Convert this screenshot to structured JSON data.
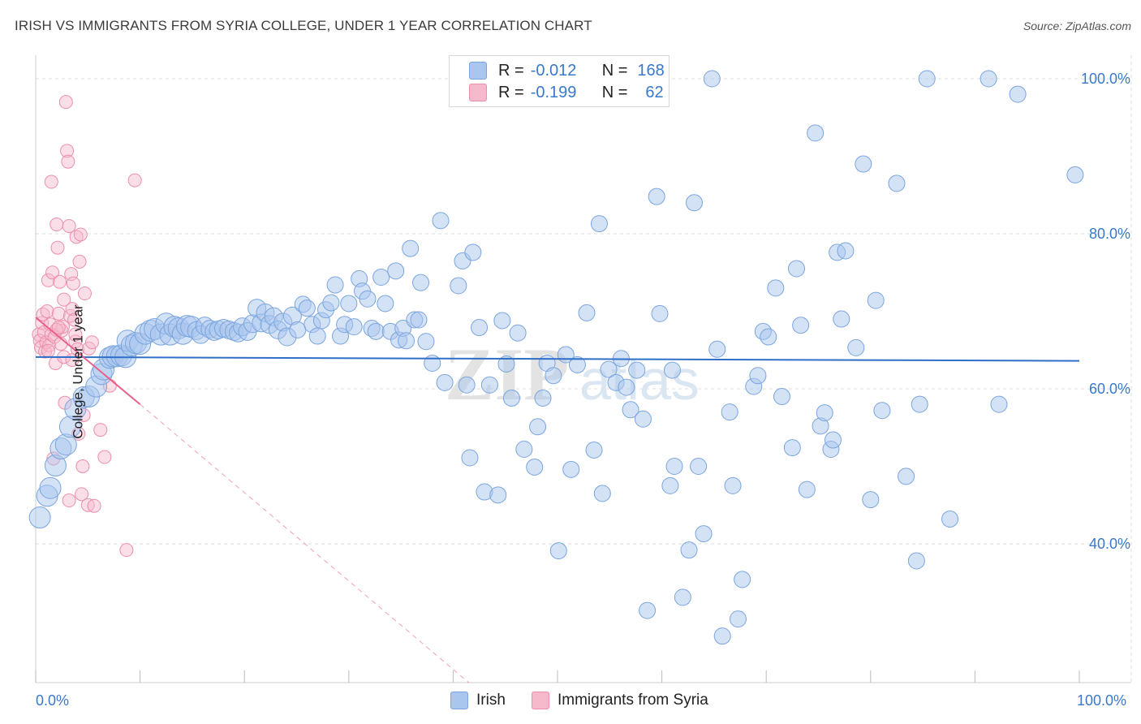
{
  "header": {
    "title": "IRISH VS IMMIGRANTS FROM SYRIA COLLEGE, UNDER 1 YEAR CORRELATION CHART",
    "source": "Source: ZipAtlas.com"
  },
  "colors": {
    "irish_fill": "#a9c6ee",
    "irish_stroke": "#7aa5de",
    "irish_line": "#2f6fc8",
    "syria_fill": "#f6b8cb",
    "syria_stroke": "#ec8fac",
    "syria_line": "#e8608a",
    "axis_text": "#3a78c9",
    "grid": "#dddddd"
  },
  "legend_top": {
    "rows": [
      {
        "r_label": "R =",
        "r_value": "-0.012",
        "n_label": "N =",
        "n_value": "168"
      },
      {
        "r_label": "R =",
        "r_value": "-0.199",
        "n_label": "N =",
        "n_value": "62"
      }
    ]
  },
  "legend_bottom": {
    "irish": "Irish",
    "syria": "Immigrants from Syria"
  },
  "axes": {
    "ylabel": "College, Under 1 year",
    "x_min_label": "0.0%",
    "x_max_label": "100.0%",
    "y_tick_labels": [
      "100.0%",
      "80.0%",
      "60.0%",
      "40.0%"
    ]
  },
  "watermark": {
    "zip": "ZIP",
    "atlas": "atlas"
  },
  "chart_data": {
    "type": "scatter",
    "xlim": [
      0,
      100
    ],
    "ylim": [
      19.5,
      105
    ],
    "y_ticks": [
      100,
      80,
      60,
      40
    ],
    "grid": true,
    "legend_placement": "top-center",
    "series": [
      {
        "name": "Irish",
        "r": -0.012,
        "n": 168,
        "trend": [
          [
            0,
            64.1
          ],
          [
            100,
            63.6
          ]
        ],
        "points": [
          [
            0.4,
            43.4
          ],
          [
            1.1,
            46.2
          ],
          [
            1.4,
            47.2
          ],
          [
            1.9,
            50.1
          ],
          [
            2.4,
            52.3
          ],
          [
            2.9,
            52.8
          ],
          [
            3.3,
            55.1
          ],
          [
            3.8,
            57.4
          ],
          [
            4.6,
            58.9
          ],
          [
            5.1,
            59.0
          ],
          [
            5.8,
            60.3
          ],
          [
            6.3,
            61.9
          ],
          [
            6.5,
            62.5
          ],
          [
            7.1,
            64.0
          ],
          [
            7.4,
            64.2
          ],
          [
            7.8,
            64.2
          ],
          [
            8.2,
            64.3
          ],
          [
            8.6,
            64.1
          ],
          [
            8.8,
            66.2
          ],
          [
            9.2,
            65.6
          ],
          [
            9.6,
            65.9
          ],
          [
            10.0,
            65.8
          ],
          [
            10.5,
            67.1
          ],
          [
            11.0,
            67.5
          ],
          [
            11.4,
            67.7
          ],
          [
            12.0,
            67.0
          ],
          [
            12.5,
            68.4
          ],
          [
            12.9,
            67.0
          ],
          [
            13.3,
            68.0
          ],
          [
            13.7,
            67.8
          ],
          [
            14.1,
            67.1
          ],
          [
            14.5,
            68.1
          ],
          [
            14.9,
            68.0
          ],
          [
            15.4,
            67.5
          ],
          [
            15.8,
            67.0
          ],
          [
            16.2,
            68.1
          ],
          [
            16.7,
            67.7
          ],
          [
            17.1,
            67.4
          ],
          [
            17.5,
            67.6
          ],
          [
            18.0,
            67.8
          ],
          [
            18.5,
            67.6
          ],
          [
            19.0,
            67.4
          ],
          [
            19.4,
            67.2
          ],
          [
            19.8,
            68.0
          ],
          [
            20.3,
            67.4
          ],
          [
            20.8,
            68.4
          ],
          [
            21.2,
            70.4
          ],
          [
            21.6,
            68.5
          ],
          [
            22.0,
            69.8
          ],
          [
            22.4,
            68.3
          ],
          [
            22.8,
            69.3
          ],
          [
            23.2,
            67.6
          ],
          [
            23.7,
            68.6
          ],
          [
            24.1,
            66.7
          ],
          [
            24.6,
            69.4
          ],
          [
            25.1,
            67.6
          ],
          [
            25.6,
            70.9
          ],
          [
            26.0,
            70.4
          ],
          [
            26.5,
            68.3
          ],
          [
            27.0,
            66.8
          ],
          [
            27.4,
            68.8
          ],
          [
            27.8,
            70.2
          ],
          [
            28.3,
            71.1
          ],
          [
            28.7,
            73.4
          ],
          [
            29.2,
            66.8
          ],
          [
            29.6,
            68.3
          ],
          [
            30.0,
            71.0
          ],
          [
            30.5,
            68.0
          ],
          [
            31.0,
            74.2
          ],
          [
            31.3,
            72.6
          ],
          [
            31.8,
            71.6
          ],
          [
            32.2,
            67.8
          ],
          [
            32.6,
            67.4
          ],
          [
            33.1,
            74.4
          ],
          [
            33.5,
            71.0
          ],
          [
            34.0,
            67.4
          ],
          [
            34.5,
            75.2
          ],
          [
            34.8,
            66.3
          ],
          [
            35.2,
            67.8
          ],
          [
            35.5,
            66.2
          ],
          [
            35.9,
            78.1
          ],
          [
            36.3,
            68.9
          ],
          [
            36.7,
            68.9
          ],
          [
            36.9,
            73.7
          ],
          [
            37.4,
            66.1
          ],
          [
            38.0,
            63.3
          ],
          [
            38.8,
            81.7
          ],
          [
            39.2,
            60.8
          ],
          [
            40.5,
            73.3
          ],
          [
            40.9,
            76.5
          ],
          [
            41.3,
            60.5
          ],
          [
            41.6,
            51.1
          ],
          [
            41.9,
            77.6
          ],
          [
            42.5,
            67.9
          ],
          [
            43.0,
            46.7
          ],
          [
            43.5,
            60.5
          ],
          [
            44.3,
            46.3
          ],
          [
            44.7,
            68.8
          ],
          [
            45.1,
            63.2
          ],
          [
            45.6,
            58.8
          ],
          [
            46.2,
            67.2
          ],
          [
            46.8,
            52.2
          ],
          [
            47.8,
            49.9
          ],
          [
            48.1,
            55.1
          ],
          [
            48.6,
            58.8
          ],
          [
            49.0,
            63.3
          ],
          [
            49.6,
            61.7
          ],
          [
            50.1,
            39.1
          ],
          [
            50.8,
            64.4
          ],
          [
            51.3,
            49.6
          ],
          [
            51.9,
            63.1
          ],
          [
            52.8,
            69.8
          ],
          [
            53.5,
            52.1
          ],
          [
            54.0,
            81.3
          ],
          [
            54.3,
            46.5
          ],
          [
            54.9,
            62.5
          ],
          [
            55.6,
            60.8
          ],
          [
            56.1,
            63.9
          ],
          [
            56.6,
            60.2
          ],
          [
            57.0,
            57.3
          ],
          [
            57.6,
            62.4
          ],
          [
            58.2,
            56.1
          ],
          [
            58.6,
            31.4
          ],
          [
            59.5,
            84.8
          ],
          [
            59.8,
            69.7
          ],
          [
            60.8,
            47.5
          ],
          [
            61.0,
            62.4
          ],
          [
            61.2,
            50.0
          ],
          [
            62.0,
            33.1
          ],
          [
            62.6,
            39.2
          ],
          [
            63.1,
            84.0
          ],
          [
            63.5,
            50.0
          ],
          [
            64.0,
            41.3
          ],
          [
            64.8,
            100.0
          ],
          [
            65.3,
            65.1
          ],
          [
            65.8,
            28.1
          ],
          [
            66.5,
            57.0
          ],
          [
            66.8,
            47.5
          ],
          [
            67.3,
            30.3
          ],
          [
            67.7,
            35.4
          ],
          [
            68.8,
            60.3
          ],
          [
            69.2,
            61.7
          ],
          [
            69.7,
            67.4
          ],
          [
            70.2,
            66.7
          ],
          [
            70.9,
            73.0
          ],
          [
            71.5,
            59.0
          ],
          [
            72.5,
            52.4
          ],
          [
            72.9,
            75.5
          ],
          [
            73.3,
            68.2
          ],
          [
            73.9,
            47.0
          ],
          [
            74.7,
            93.0
          ],
          [
            75.2,
            55.2
          ],
          [
            75.6,
            56.9
          ],
          [
            76.2,
            52.2
          ],
          [
            76.4,
            53.4
          ],
          [
            76.8,
            77.6
          ],
          [
            77.2,
            69.0
          ],
          [
            77.6,
            77.8
          ],
          [
            78.6,
            65.3
          ],
          [
            79.3,
            89.0
          ],
          [
            80.0,
            45.7
          ],
          [
            80.5,
            71.4
          ],
          [
            81.1,
            57.2
          ],
          [
            82.5,
            86.5
          ],
          [
            83.4,
            48.7
          ],
          [
            84.4,
            37.8
          ],
          [
            84.7,
            58.0
          ],
          [
            85.4,
            100.0
          ],
          [
            87.6,
            43.2
          ],
          [
            91.3,
            100.0
          ],
          [
            92.3,
            58.0
          ],
          [
            94.1,
            98.0
          ],
          [
            99.6,
            87.6
          ]
        ]
      },
      {
        "name": "Immigrants from Syria",
        "r": -0.199,
        "n": 62,
        "trend": [
          [
            0,
            69.2
          ],
          [
            10,
            58.0
          ]
        ],
        "trend_extended": [
          [
            10,
            58.0
          ],
          [
            41.5,
            19.5
          ]
        ],
        "points": [
          [
            0.3,
            67.0
          ],
          [
            0.4,
            66.2
          ],
          [
            0.5,
            65.3
          ],
          [
            0.6,
            68.5
          ],
          [
            0.7,
            69.6
          ],
          [
            0.8,
            67.3
          ],
          [
            0.9,
            64.8
          ],
          [
            1.0,
            66.0
          ],
          [
            1.1,
            70.0
          ],
          [
            1.2,
            74.0
          ],
          [
            1.3,
            65.6
          ],
          [
            1.4,
            68.3
          ],
          [
            1.5,
            67.0
          ],
          [
            1.6,
            75.0
          ],
          [
            1.7,
            51.0
          ],
          [
            1.8,
            66.7
          ],
          [
            1.9,
            63.3
          ],
          [
            2.0,
            81.2
          ],
          [
            2.1,
            78.2
          ],
          [
            2.2,
            69.7
          ],
          [
            2.3,
            73.8
          ],
          [
            2.4,
            65.8
          ],
          [
            2.5,
            67.5
          ],
          [
            2.6,
            68.0
          ],
          [
            2.7,
            64.1
          ],
          [
            2.8,
            58.2
          ],
          [
            2.9,
            97.0
          ],
          [
            3.0,
            90.7
          ],
          [
            3.1,
            89.3
          ],
          [
            3.2,
            81.0
          ],
          [
            3.3,
            69.4
          ],
          [
            3.4,
            74.8
          ],
          [
            3.5,
            70.3
          ],
          [
            3.6,
            73.6
          ],
          [
            3.7,
            68.9
          ],
          [
            3.8,
            66.1
          ],
          [
            3.9,
            79.6
          ],
          [
            4.0,
            65.1
          ],
          [
            4.1,
            54.2
          ],
          [
            4.2,
            76.4
          ],
          [
            4.3,
            79.9
          ],
          [
            4.4,
            46.4
          ],
          [
            4.5,
            50.0
          ],
          [
            4.6,
            56.6
          ],
          [
            4.7,
            72.3
          ],
          [
            3.2,
            45.6
          ],
          [
            1.5,
            86.7
          ],
          [
            3.5,
            63.7
          ],
          [
            2.0,
            67.6
          ],
          [
            1.2,
            64.9
          ],
          [
            2.7,
            71.5
          ],
          [
            3.8,
            67.0
          ],
          [
            5.0,
            45.0
          ],
          [
            5.1,
            65.2
          ],
          [
            5.4,
            66.0
          ],
          [
            5.6,
            44.9
          ],
          [
            6.2,
            54.7
          ],
          [
            6.6,
            51.2
          ],
          [
            7.1,
            60.4
          ],
          [
            8.7,
            39.2
          ],
          [
            9.5,
            86.9
          ],
          [
            2.2,
            67.9
          ]
        ]
      }
    ]
  }
}
